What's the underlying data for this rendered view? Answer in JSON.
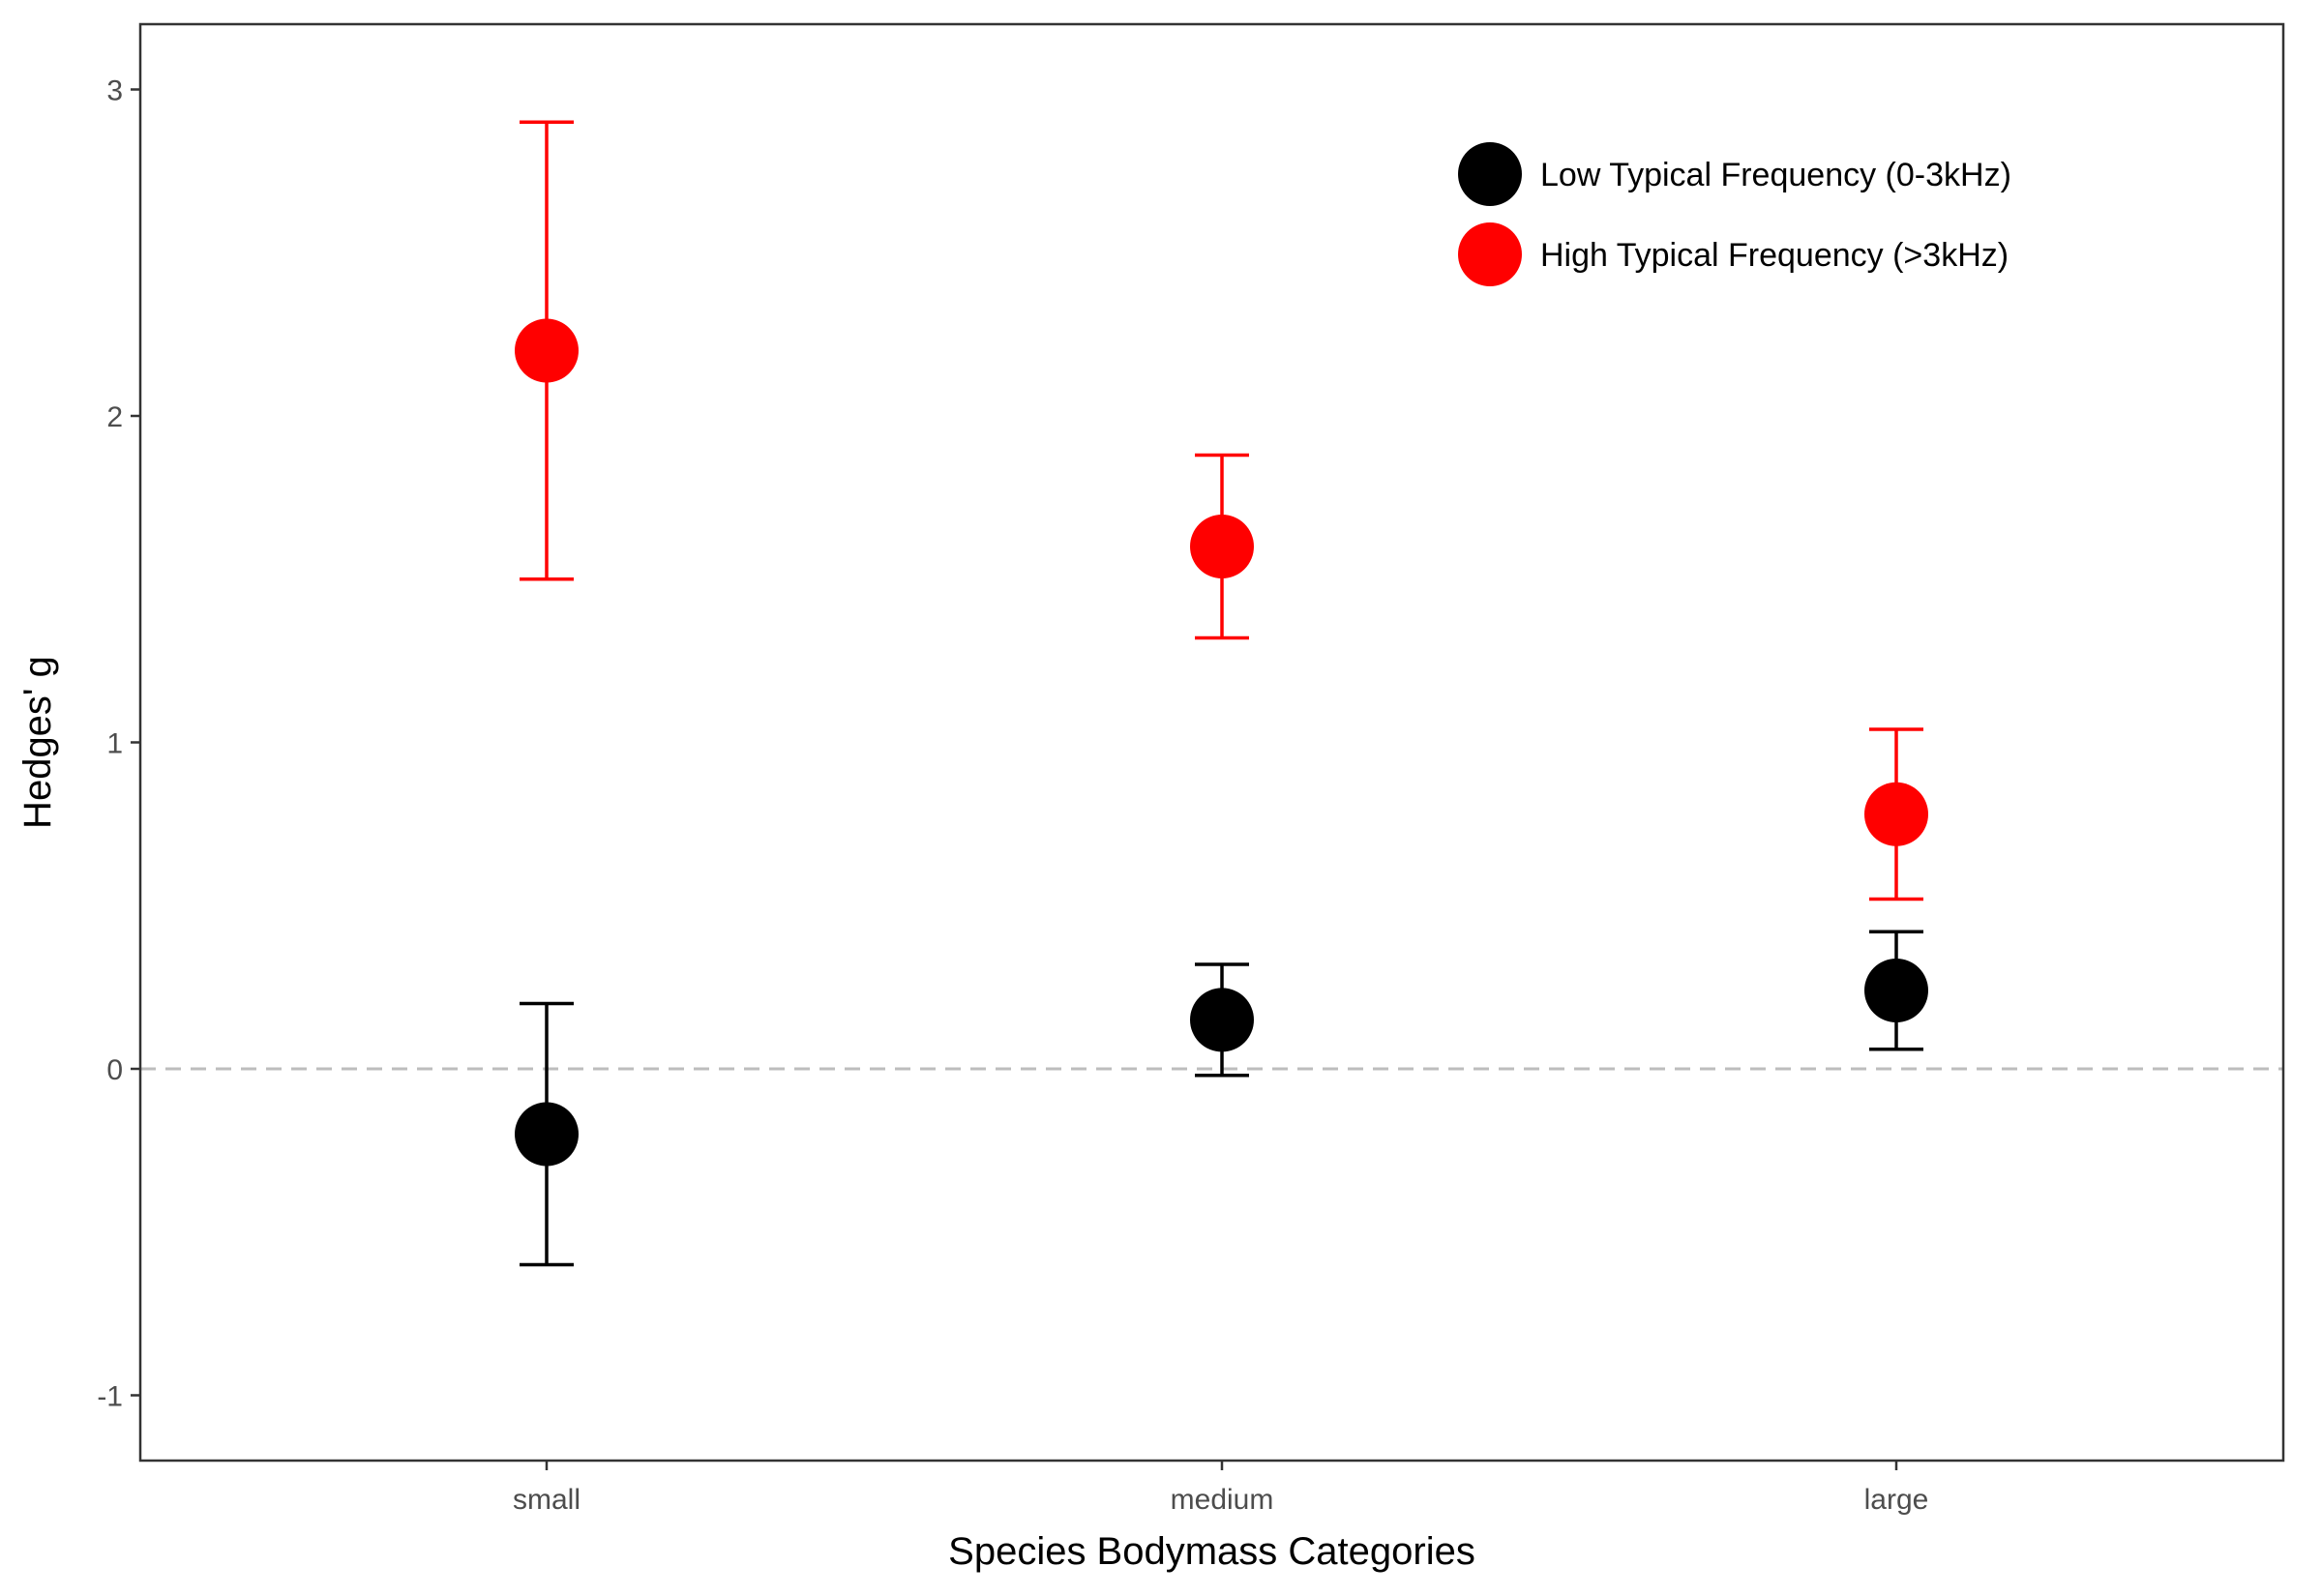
{
  "chart_data": {
    "type": "scatter",
    "title": "",
    "xlabel": "Species Bodymass Categories",
    "ylabel": "Hedges' g",
    "categories": [
      "small",
      "medium",
      "large"
    ],
    "ylim": [
      -1.2,
      3.2
    ],
    "yticks": [
      -1,
      0,
      1,
      2,
      3
    ],
    "ytick_labels": [
      "-1",
      "0",
      "1",
      "2",
      "3"
    ],
    "reference_line": {
      "y": 0,
      "style": "dashed",
      "color": "#bdbdbd"
    },
    "grid": false,
    "legend_position": "top-right",
    "series": [
      {
        "name": "Low Typical Frequency (0-3kHz)",
        "color": "#000000",
        "values": [
          -0.2,
          0.15,
          0.24
        ],
        "lower": [
          -0.6,
          -0.02,
          0.06
        ],
        "upper": [
          0.2,
          0.32,
          0.42
        ]
      },
      {
        "name": "High Typical Frequency (>3kHz)",
        "color": "#ff0000",
        "values": [
          2.2,
          1.6,
          0.78
        ],
        "lower": [
          1.5,
          1.32,
          0.52
        ],
        "upper": [
          2.9,
          1.88,
          1.04
        ]
      }
    ]
  }
}
